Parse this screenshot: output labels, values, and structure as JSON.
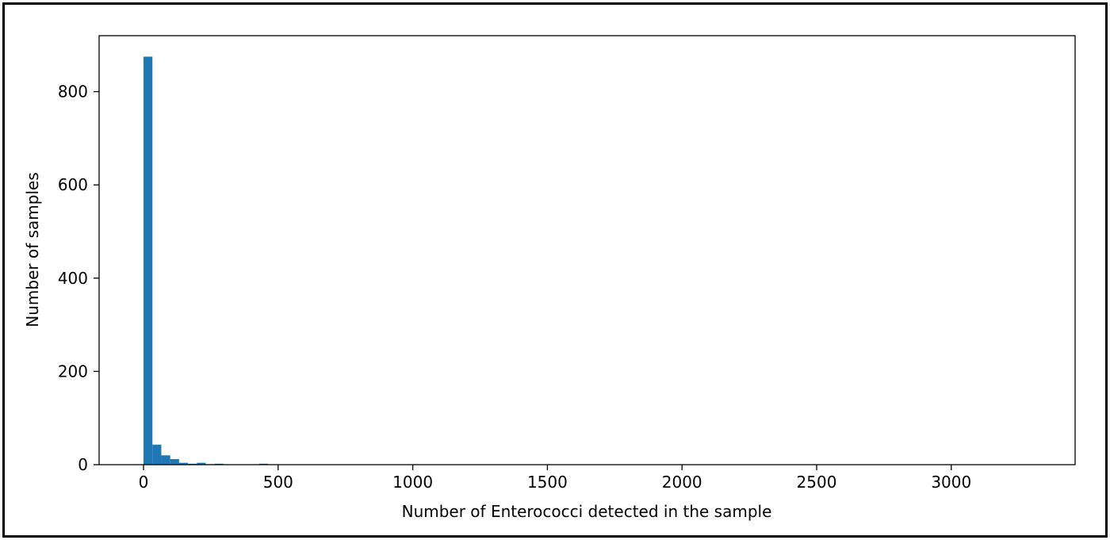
{
  "chart_data": {
    "type": "bar",
    "title": "",
    "xlabel": "Number of Enterococci detected in the sample",
    "ylabel": "Number of samples",
    "xlim": [
      -165,
      3460
    ],
    "ylim": [
      0,
      920
    ],
    "x_ticks": [
      0,
      500,
      1000,
      1500,
      2000,
      2500,
      3000
    ],
    "y_ticks": [
      0,
      200,
      400,
      600,
      800
    ],
    "x_tick_labels": [
      "0",
      "500",
      "1000",
      "1500",
      "2000",
      "2500",
      "3000"
    ],
    "y_tick_labels": [
      "0",
      "200",
      "400",
      "600",
      "800"
    ],
    "grid": false,
    "legend": "none",
    "bar_color": "#1f77b4",
    "bin_edges": [
      0,
      33,
      66,
      99,
      132,
      165,
      198,
      231,
      264,
      297,
      330,
      363,
      396,
      429,
      462
    ],
    "values": [
      875,
      43,
      20,
      12,
      4,
      2,
      4,
      1,
      2,
      0,
      0,
      0,
      0,
      2
    ]
  }
}
